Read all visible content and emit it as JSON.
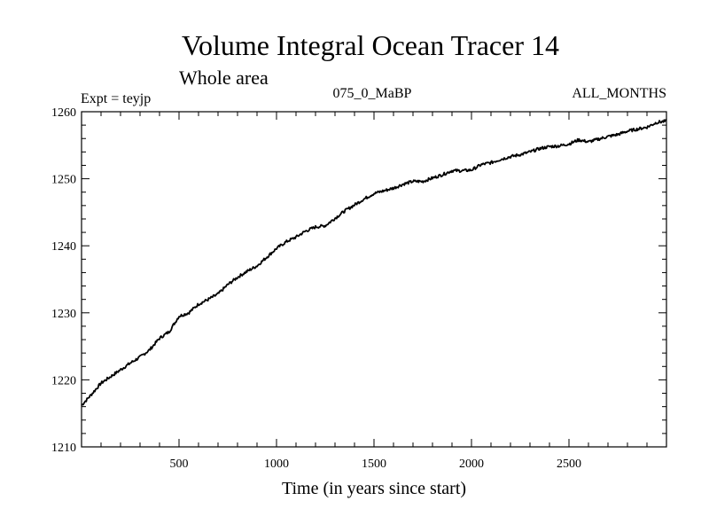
{
  "chart_data": {
    "type": "line",
    "title": "Volume Integral Ocean Tracer 14",
    "subtitle": "Whole area",
    "annotations": {
      "left": "Expt = teyjp",
      "center": "075_0_MaBP",
      "right": "ALL_MONTHS"
    },
    "xlabel": "Time (in years since start)",
    "ylabel": "",
    "xlim": [
      0,
      3000
    ],
    "ylim": [
      1210,
      1260
    ],
    "x_ticks": [
      "500",
      "1000",
      "1500",
      "2000",
      "2500"
    ],
    "y_ticks": [
      "1210",
      "1220",
      "1230",
      "1240",
      "1250",
      "1260"
    ],
    "grid": false,
    "series": [
      {
        "name": "Tracer 14",
        "x": [
          0,
          50,
          100,
          150,
          200,
          250,
          300,
          350,
          400,
          450,
          500,
          550,
          600,
          650,
          700,
          750,
          800,
          850,
          900,
          950,
          1000,
          1050,
          1100,
          1150,
          1200,
          1250,
          1300,
          1350,
          1400,
          1450,
          1500,
          1550,
          1600,
          1650,
          1700,
          1750,
          1800,
          1850,
          1900,
          1950,
          2000,
          2050,
          2100,
          2150,
          2200,
          2250,
          2300,
          2350,
          2400,
          2450,
          2500,
          2550,
          2600,
          2650,
          2700,
          2750,
          2800,
          2850,
          2900,
          2950,
          3000
        ],
        "values": [
          1216.2,
          1217.8,
          1219.5,
          1220.5,
          1221.5,
          1222.5,
          1223.4,
          1224.5,
          1226.2,
          1227.2,
          1229.5,
          1230.0,
          1231.3,
          1232.0,
          1232.8,
          1234.2,
          1235.3,
          1236.2,
          1237.0,
          1238.3,
          1239.6,
          1240.6,
          1241.3,
          1242.2,
          1242.8,
          1243.0,
          1244.1,
          1245.2,
          1246.1,
          1247.0,
          1247.8,
          1248.2,
          1248.6,
          1249.2,
          1249.6,
          1249.6,
          1250.1,
          1250.6,
          1251.2,
          1251.2,
          1251.3,
          1252.1,
          1252.4,
          1252.9,
          1253.3,
          1253.6,
          1254.0,
          1254.5,
          1254.8,
          1254.9,
          1255.2,
          1255.8,
          1255.5,
          1255.9,
          1256.3,
          1256.6,
          1257.1,
          1257.4,
          1257.7,
          1258.4,
          1258.6
        ]
      }
    ]
  }
}
